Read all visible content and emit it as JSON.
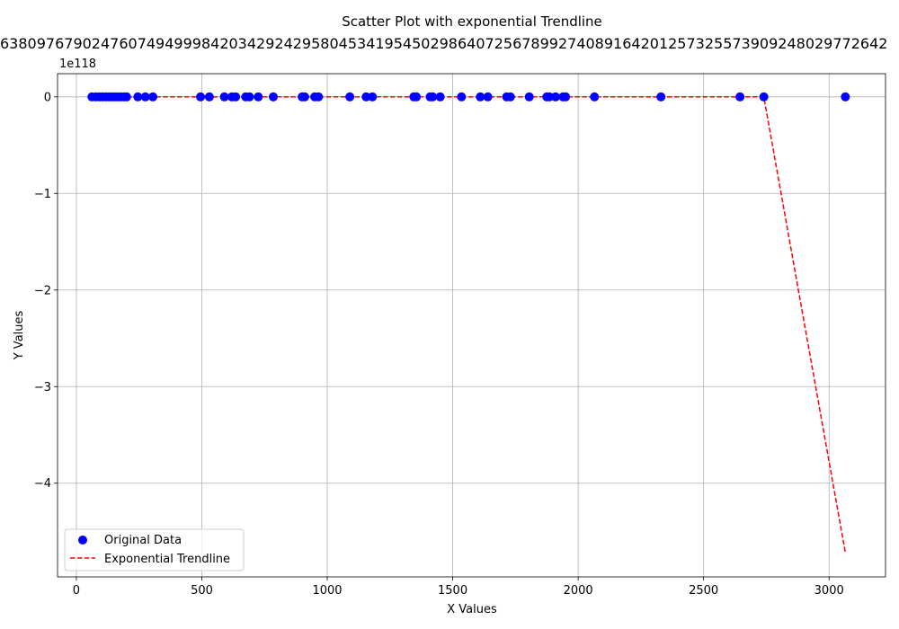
{
  "chart_data": {
    "type": "scatter",
    "title": "Scatter Plot with exponential Trendline",
    "top_label": "6380976790247607494999842034292429580453419545029864072567899274089164201257325573909248029772642",
    "xlabel": "X Values",
    "ylabel": "Y Values",
    "y_offset_label": "1e118",
    "xlim": [
      -75,
      3225
    ],
    "ylim": [
      -4.97,
      0.24
    ],
    "x_ticks": [
      0,
      500,
      1000,
      1500,
      2000,
      2500,
      3000
    ],
    "y_ticks": [
      0,
      -1,
      -2,
      -3,
      -4
    ],
    "y_tick_labels": [
      "0",
      "−1",
      "−2",
      "−3",
      "−4"
    ],
    "grid": true,
    "legend_position": "lower-left",
    "series": [
      {
        "name": "Original Data",
        "kind": "scatter",
        "color": "#0000ff",
        "points": [
          [
            62,
            0
          ],
          [
            78,
            0
          ],
          [
            92,
            0
          ],
          [
            105,
            0
          ],
          [
            118,
            0
          ],
          [
            130,
            0
          ],
          [
            142,
            0
          ],
          [
            155,
            0
          ],
          [
            165,
            0
          ],
          [
            178,
            0
          ],
          [
            190,
            0
          ],
          [
            200,
            0
          ],
          [
            245,
            0
          ],
          [
            275,
            0
          ],
          [
            305,
            0
          ],
          [
            495,
            0
          ],
          [
            530,
            0
          ],
          [
            590,
            0
          ],
          [
            620,
            0
          ],
          [
            635,
            0
          ],
          [
            675,
            0
          ],
          [
            690,
            0
          ],
          [
            725,
            0
          ],
          [
            785,
            0
          ],
          [
            900,
            0
          ],
          [
            910,
            0
          ],
          [
            950,
            0
          ],
          [
            965,
            0
          ],
          [
            1090,
            0
          ],
          [
            1155,
            0
          ],
          [
            1180,
            0
          ],
          [
            1345,
            0
          ],
          [
            1355,
            0
          ],
          [
            1410,
            0
          ],
          [
            1420,
            0
          ],
          [
            1450,
            0
          ],
          [
            1535,
            0
          ],
          [
            1610,
            0
          ],
          [
            1640,
            0
          ],
          [
            1715,
            0
          ],
          [
            1730,
            0
          ],
          [
            1805,
            0
          ],
          [
            1875,
            0
          ],
          [
            1885,
            0
          ],
          [
            1910,
            0
          ],
          [
            1940,
            0
          ],
          [
            1950,
            0
          ],
          [
            2065,
            0
          ],
          [
            2330,
            0
          ],
          [
            2645,
            0
          ],
          [
            2740,
            0
          ],
          [
            3065,
            0
          ]
        ]
      },
      {
        "name": "Exponential Trendline",
        "kind": "line",
        "color": "#ff0000",
        "dash": "dashed",
        "points": [
          [
            62,
            0
          ],
          [
            2740,
            0
          ],
          [
            3065,
            -4.72
          ]
        ]
      }
    ]
  }
}
